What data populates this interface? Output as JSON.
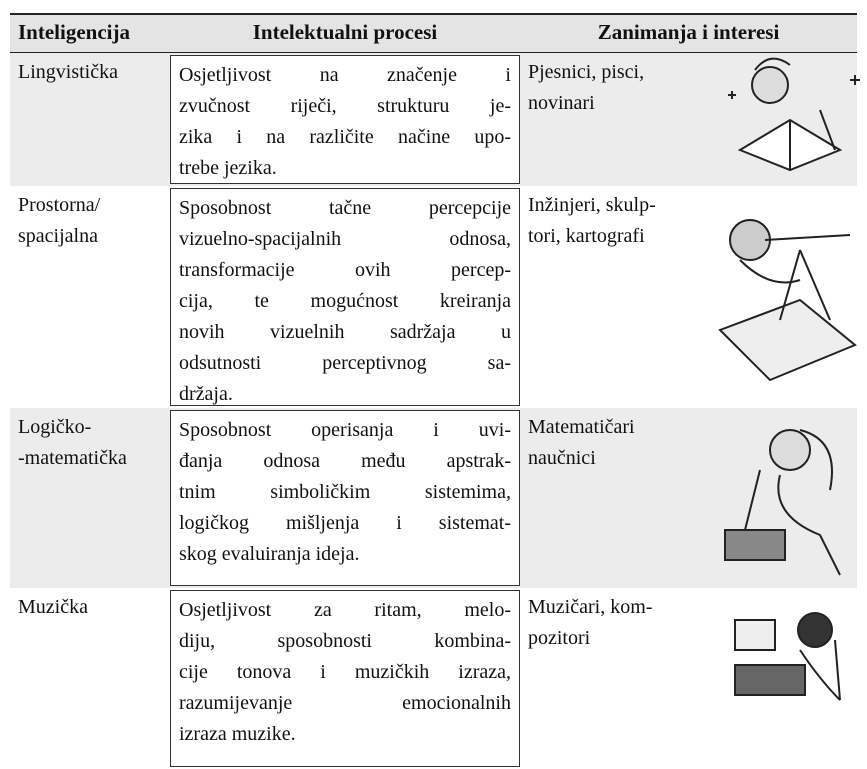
{
  "table": {
    "header": [
      "Inteligencija",
      "Intelektualni procesi",
      "Zanimanja i interesi"
    ],
    "rows": [
      {
        "name": [
          "Lingvistička"
        ],
        "process": [
          "Osjetljivost na značenje i",
          "zvučnost riječi, strukturu je-",
          "zika i na različite načine upo-",
          "trebe  jezika."
        ],
        "interests": [
          "Pjesnici, pisci,",
          "novinari"
        ]
      },
      {
        "name": [
          "Prostorna/",
          "spacijalna"
        ],
        "process": [
          "Sposobnost tačne percepcije",
          "vizuelno-spacijalnih odnosa,",
          "transformacije ovih percep-",
          "cija, te mogućnost kreiranja",
          "novih vizuelnih sadržaja u",
          "odsutnosti perceptivnog sa-",
          "držaja."
        ],
        "interests": [
          "Inžinjeri, skulp-",
          "tori, kartografi"
        ]
      },
      {
        "name": [
          "Logičko-",
          "-matematička"
        ],
        "process": [
          "Sposobnost operisanja i uvi-",
          "đanja odnosa među apstrak-",
          "tnim simboličkim sistemima,",
          "logičkog mišljenja i sistemat-",
          "skog evaluiranja ideja."
        ],
        "interests": [
          "Matematičari",
          "naučnici"
        ]
      },
      {
        "name": [
          "Muzička"
        ],
        "process": [
          "Osjetljivost za ritam, melo-",
          "diju, sposobnosti kombina-",
          "cije tonova i muzičkih izraza,",
          "razumijevanje emocionalnih",
          "izraza muzike."
        ],
        "interests": [
          "Muzičari, kom-",
          "pozitori"
        ]
      }
    ]
  }
}
